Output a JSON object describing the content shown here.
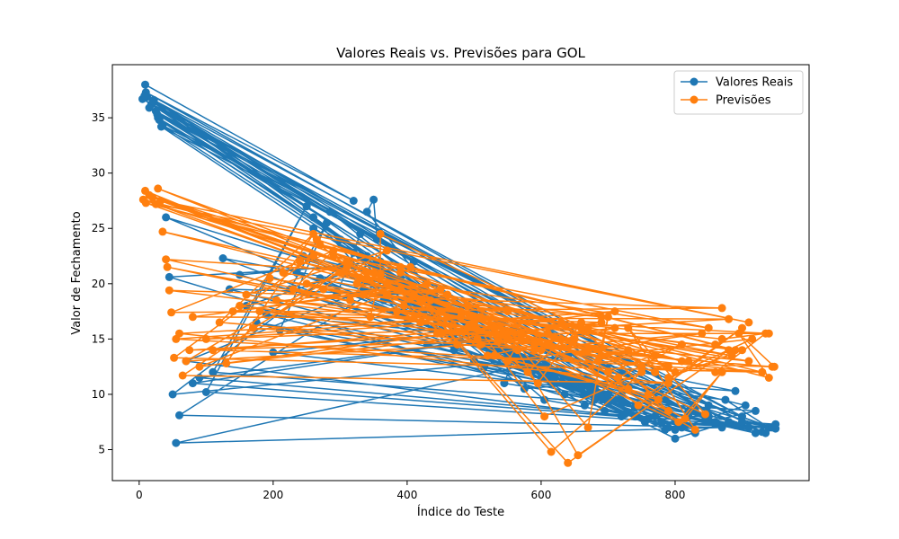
{
  "chart_data": {
    "type": "line",
    "title": "Valores Reais vs. Previsões para GOL",
    "xlabel": "Índice do Teste",
    "ylabel": "Valor de Fechamento",
    "xlim": [
      -40,
      1000
    ],
    "ylim": [
      2.2,
      39.8
    ],
    "xticks": [
      0,
      200,
      400,
      600,
      800
    ],
    "yticks": [
      5,
      10,
      15,
      20,
      25,
      30,
      35
    ],
    "grid": false,
    "legend_position": "top-right",
    "series": [
      {
        "name": "Valores Reais",
        "color": "#1f77b4",
        "marker": "circle",
        "x": [
          9,
          320,
          10,
          850,
          5,
          410,
          20,
          780,
          28,
          600,
          35,
          900,
          22,
          450,
          30,
          820,
          12,
          340,
          25,
          760,
          8,
          560,
          33,
          880,
          18,
          250,
          27,
          930,
          15,
          500,
          40,
          790,
          45,
          300,
          50,
          640,
          55,
          870,
          60,
          380,
          70,
          720,
          80,
          520,
          90,
          950,
          100,
          250,
          110,
          700,
          125,
          420,
          135,
          830,
          150,
          360,
          160,
          600,
          175,
          920,
          190,
          470,
          200,
          660,
          210,
          280,
          225,
          810,
          235,
          540,
          245,
          380,
          260,
          740,
          270,
          480,
          285,
          860,
          295,
          330,
          310,
          580,
          320,
          700,
          335,
          440,
          340,
          350,
          355,
          800,
          365,
          500,
          380,
          620,
          390,
          900,
          400,
          260,
          415,
          680,
          430,
          520,
          440,
          940,
          455,
          300,
          470,
          610,
          485,
          780,
          500,
          400,
          515,
          720,
          530,
          560,
          545,
          850,
          560,
          330,
          575,
          670,
          590,
          490,
          605,
          760,
          620,
          410,
          635,
          890,
          650,
          540,
          665,
          700,
          680,
          360,
          695,
          820,
          710,
          470,
          725,
          600,
          740,
          910,
          755,
          520,
          770,
          650,
          785,
          440,
          800,
          880,
          815,
          560,
          830,
          740,
          845,
          380,
          860,
          940,
          875,
          620,
          890,
          500,
          905,
          800,
          920,
          680,
          935,
          450,
          945,
          900,
          950
        ],
        "y": [
          38.0,
          27.5,
          37.3,
          9.0,
          36.7,
          22.0,
          36.4,
          7.5,
          35.0,
          12.0,
          34.3,
          8.0,
          36.6,
          18.5,
          34.8,
          8.5,
          36.9,
          22.5,
          35.6,
          9.5,
          37.0,
          13.0,
          34.2,
          7.5,
          36.2,
          27.0,
          35.3,
          6.6,
          35.9,
          17.5,
          26.0,
          7.0,
          20.6,
          21.5,
          10.0,
          13.5,
          5.6,
          7.0,
          8.1,
          20.5,
          13.0,
          8.0,
          11.0,
          15.0,
          11.5,
          6.9,
          10.2,
          27.0,
          12.0,
          9.2,
          22.3,
          19.0,
          19.5,
          8.5,
          20.8,
          22.0,
          18.0,
          12.0,
          16.5,
          6.5,
          17.2,
          15.5,
          13.8,
          10.5,
          15.8,
          25.5,
          19.5,
          7.0,
          21.0,
          14.5,
          22.5,
          20.5,
          25.0,
          8.0,
          20.5,
          17.0,
          26.5,
          7.5,
          19.0,
          24.5,
          21.0,
          12.5,
          22.8,
          10.0,
          19.5,
          19.0,
          26.5,
          27.6,
          24.0,
          7.6,
          18.5,
          16.5,
          17.5,
          11.5,
          20.5,
          7.2,
          16.5,
          26.0,
          18.0,
          10.5,
          14.5,
          15.0,
          16.0,
          7.0,
          18.5,
          24.0,
          14.0,
          12.5,
          15.8,
          8.5,
          13.0,
          19.0,
          12.5,
          10.0,
          14.0,
          13.5,
          11.0,
          8.0,
          13.5,
          22.5,
          10.5,
          11.0,
          12.5,
          15.5,
          9.5,
          7.8,
          11.5,
          19.0,
          10.0,
          7.2,
          11.0,
          14.0,
          9.0,
          10.0,
          10.5,
          21.0,
          8.5,
          8.0,
          9.5,
          16.5,
          8.2,
          11.5,
          8.8,
          7.0,
          7.5,
          14.5,
          8.0,
          11.0,
          6.8,
          17.0,
          6.0,
          7.5,
          7.2,
          13.5,
          6.5,
          8.0,
          8.0,
          20.0,
          7.5,
          7.0,
          9.5,
          11.5,
          10.3,
          15.0,
          9.0,
          6.8,
          8.5,
          9.5,
          6.5,
          17.5,
          7.0,
          7.5,
          7.3
        ]
      },
      {
        "name": "Previsões",
        "color": "#ff7f0e",
        "marker": "circle",
        "x": [
          9,
          330,
          10,
          860,
          6,
          420,
          20,
          770,
          28,
          610,
          32,
          910,
          25,
          460,
          35,
          810,
          15,
          350,
          40,
          750,
          42,
          570,
          45,
          870,
          48,
          260,
          52,
          930,
          55,
          510,
          60,
          790,
          65,
          310,
          70,
          650,
          75,
          880,
          80,
          390,
          90,
          710,
          100,
          530,
          110,
          945,
          120,
          260,
          130,
          690,
          140,
          430,
          150,
          820,
          160,
          370,
          170,
          590,
          180,
          910,
          195,
          480,
          205,
          670,
          215,
          290,
          230,
          800,
          240,
          550,
          250,
          390,
          265,
          730,
          275,
          490,
          290,
          850,
          300,
          340,
          315,
          590,
          325,
          690,
          335,
          450,
          345,
          360,
          360,
          790,
          370,
          510,
          385,
          630,
          395,
          890,
          405,
          270,
          420,
          670,
          435,
          530,
          445,
          940,
          460,
          310,
          475,
          600,
          490,
          770,
          505,
          410,
          520,
          710,
          535,
          570,
          550,
          840,
          565,
          340,
          580,
          660,
          595,
          500,
          605,
          750,
          615,
          420,
          640,
          880,
          655,
          550,
          670,
          700,
          685,
          370,
          700,
          810,
          715,
          480,
          730,
          610,
          745,
          900,
          760,
          530,
          775,
          660,
          790,
          450,
          805,
          870,
          815,
          570,
          830,
          730,
          845,
          390,
          860,
          935,
          870,
          630,
          885,
          510,
          900,
          790,
          915,
          690,
          930,
          460,
          940,
          895,
          948
        ],
        "y": [
          28.4,
          20.5,
          27.3,
          14.5,
          27.6,
          18.5,
          27.8,
          12.0,
          28.6,
          14.5,
          27.5,
          16.5,
          27.2,
          19.0,
          24.7,
          13.0,
          28.0,
          21.0,
          22.2,
          12.5,
          21.5,
          15.5,
          19.4,
          17.8,
          17.4,
          22.5,
          13.3,
          12.0,
          15.0,
          17.0,
          15.5,
          11.0,
          11.7,
          21.5,
          13.0,
          15.0,
          14.0,
          16.8,
          17.0,
          19.5,
          12.5,
          17.5,
          15.0,
          16.0,
          14.0,
          12.5,
          16.5,
          24.5,
          12.8,
          16.5,
          17.5,
          20.0,
          18.0,
          13.0,
          19.0,
          23.0,
          16.0,
          14.0,
          17.5,
          13.0,
          20.5,
          17.0,
          18.5,
          16.0,
          21.0,
          23.0,
          19.5,
          12.0,
          22.0,
          17.5,
          20.0,
          21.5,
          24.0,
          14.0,
          19.5,
          18.0,
          22.5,
          16.0,
          21.0,
          20.5,
          18.5,
          14.5,
          20.0,
          17.0,
          19.0,
          19.5,
          17.0,
          20.8,
          24.5,
          12.5,
          19.0,
          14.5,
          17.5,
          15.0,
          18.0,
          14.0,
          21.5,
          23.5,
          16.5,
          14.0,
          18.5,
          16.0,
          15.5,
          15.5,
          17.0,
          22.0,
          14.5,
          14.0,
          16.0,
          13.5,
          15.0,
          19.0,
          13.5,
          16.0,
          14.8,
          15.0,
          13.0,
          15.5,
          14.0,
          21.0,
          12.0,
          16.5,
          11.0,
          16.5,
          8.0,
          12.0,
          4.8,
          18.5,
          3.8,
          14.0,
          4.5,
          15.5,
          7.0,
          17.0,
          13.0,
          20.0,
          12.0,
          14.5,
          11.5,
          17.5,
          10.5,
          15.5,
          9.0,
          16.0,
          10.0,
          13.5,
          9.5,
          16.0,
          8.5,
          17.5,
          7.5,
          12.0,
          7.8,
          15.5,
          6.8,
          16.0,
          8.2,
          21.0,
          12.0,
          15.5,
          15.0,
          16.5,
          13.5,
          17.0,
          14.0,
          11.5,
          15.0,
          13.5,
          12.0,
          19.0,
          11.5,
          15.5,
          12.5
        ]
      }
    ]
  }
}
